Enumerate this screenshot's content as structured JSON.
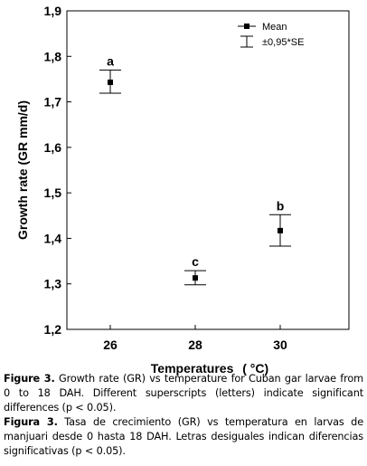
{
  "chart_data": {
    "type": "scatter",
    "xlabel": "Temperatures",
    "xlabel_unit": "( °C)",
    "ylabel": "Growth rate (GR mm/d)",
    "categories": [
      "26",
      "28",
      "30"
    ],
    "ylim": [
      1.2,
      1.9
    ],
    "yticks": [
      "1,2",
      "1,3",
      "1,4",
      "1,5",
      "1,6",
      "1,7",
      "1,8",
      "1,9"
    ],
    "series": [
      {
        "name": "Mean",
        "values": [
          1.743,
          1.313,
          1.417
        ],
        "err_low": [
          1.719,
          1.298,
          1.383
        ],
        "err_high": [
          1.77,
          1.329,
          1.452
        ],
        "letters": [
          "a",
          "c",
          "b"
        ]
      }
    ],
    "legend": {
      "placement": "top-right",
      "mean_label": "Mean",
      "error_label": "±0,95*SE"
    },
    "grid": false
  },
  "captions": {
    "en_label": "Figure 3.",
    "en_text": "Growth rate (GR) vs temperature for Cuban gar larvae from 0 to 18 DAH. Different superscripts (letters) indicate significant differences (p < 0.05).",
    "es_label": "Figura 3.",
    "es_text": "Tasa de crecimiento (GR) vs temperatura en larvas de manjuari desde 0 hasta 18 DAH. Letras desiguales indican diferencias significativas (p < 0.05)."
  }
}
